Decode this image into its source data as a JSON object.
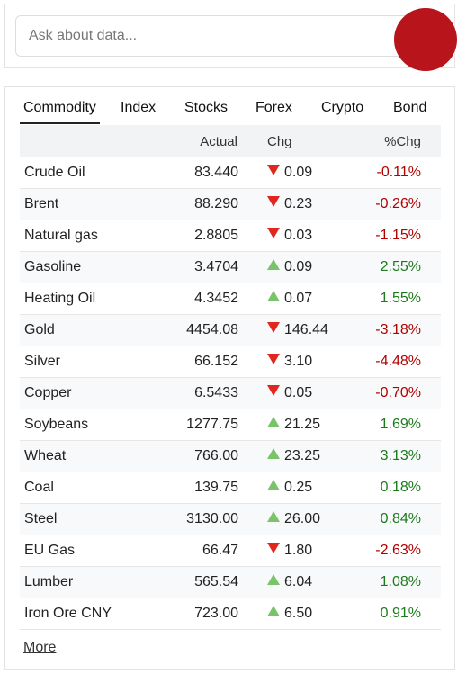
{
  "search": {
    "placeholder": "Ask about data..."
  },
  "tabs": [
    "Commodity",
    "Index",
    "Stocks",
    "Forex",
    "Crypto",
    "Bond"
  ],
  "table": {
    "headers": [
      "Actual",
      "Chg",
      "%Chg"
    ],
    "rows": [
      {
        "name": "Crude Oil",
        "actual": "83.440",
        "chg": "0.09",
        "pct": "-0.11%",
        "dir": "down"
      },
      {
        "name": "Brent",
        "actual": "88.290",
        "chg": "0.23",
        "pct": "-0.26%",
        "dir": "down"
      },
      {
        "name": "Natural gas",
        "actual": "2.8805",
        "chg": "0.03",
        "pct": "-1.15%",
        "dir": "down"
      },
      {
        "name": "Gasoline",
        "actual": "3.4704",
        "chg": "0.09",
        "pct": "2.55%",
        "dir": "up"
      },
      {
        "name": "Heating Oil",
        "actual": "4.3452",
        "chg": "0.07",
        "pct": "1.55%",
        "dir": "up"
      },
      {
        "name": "Gold",
        "actual": "4454.08",
        "chg": "146.44",
        "pct": "-3.18%",
        "dir": "down"
      },
      {
        "name": "Silver",
        "actual": "66.152",
        "chg": "3.10",
        "pct": "-4.48%",
        "dir": "down"
      },
      {
        "name": "Copper",
        "actual": "6.5433",
        "chg": "0.05",
        "pct": "-0.70%",
        "dir": "down"
      },
      {
        "name": "Soybeans",
        "actual": "1277.75",
        "chg": "21.25",
        "pct": "1.69%",
        "dir": "up"
      },
      {
        "name": "Wheat",
        "actual": "766.00",
        "chg": "23.25",
        "pct": "3.13%",
        "dir": "up"
      },
      {
        "name": "Coal",
        "actual": "139.75",
        "chg": "0.25",
        "pct": "0.18%",
        "dir": "up"
      },
      {
        "name": "Steel",
        "actual": "3130.00",
        "chg": "26.00",
        "pct": "0.84%",
        "dir": "up"
      },
      {
        "name": "EU Gas",
        "actual": "66.47",
        "chg": "1.80",
        "pct": "-2.63%",
        "dir": "down"
      },
      {
        "name": "Lumber",
        "actual": "565.54",
        "chg": "6.04",
        "pct": "1.08%",
        "dir": "up"
      },
      {
        "name": "Iron Ore CNY",
        "actual": "723.00",
        "chg": "6.50",
        "pct": "0.91%",
        "dir": "up"
      }
    ]
  },
  "more": "More"
}
